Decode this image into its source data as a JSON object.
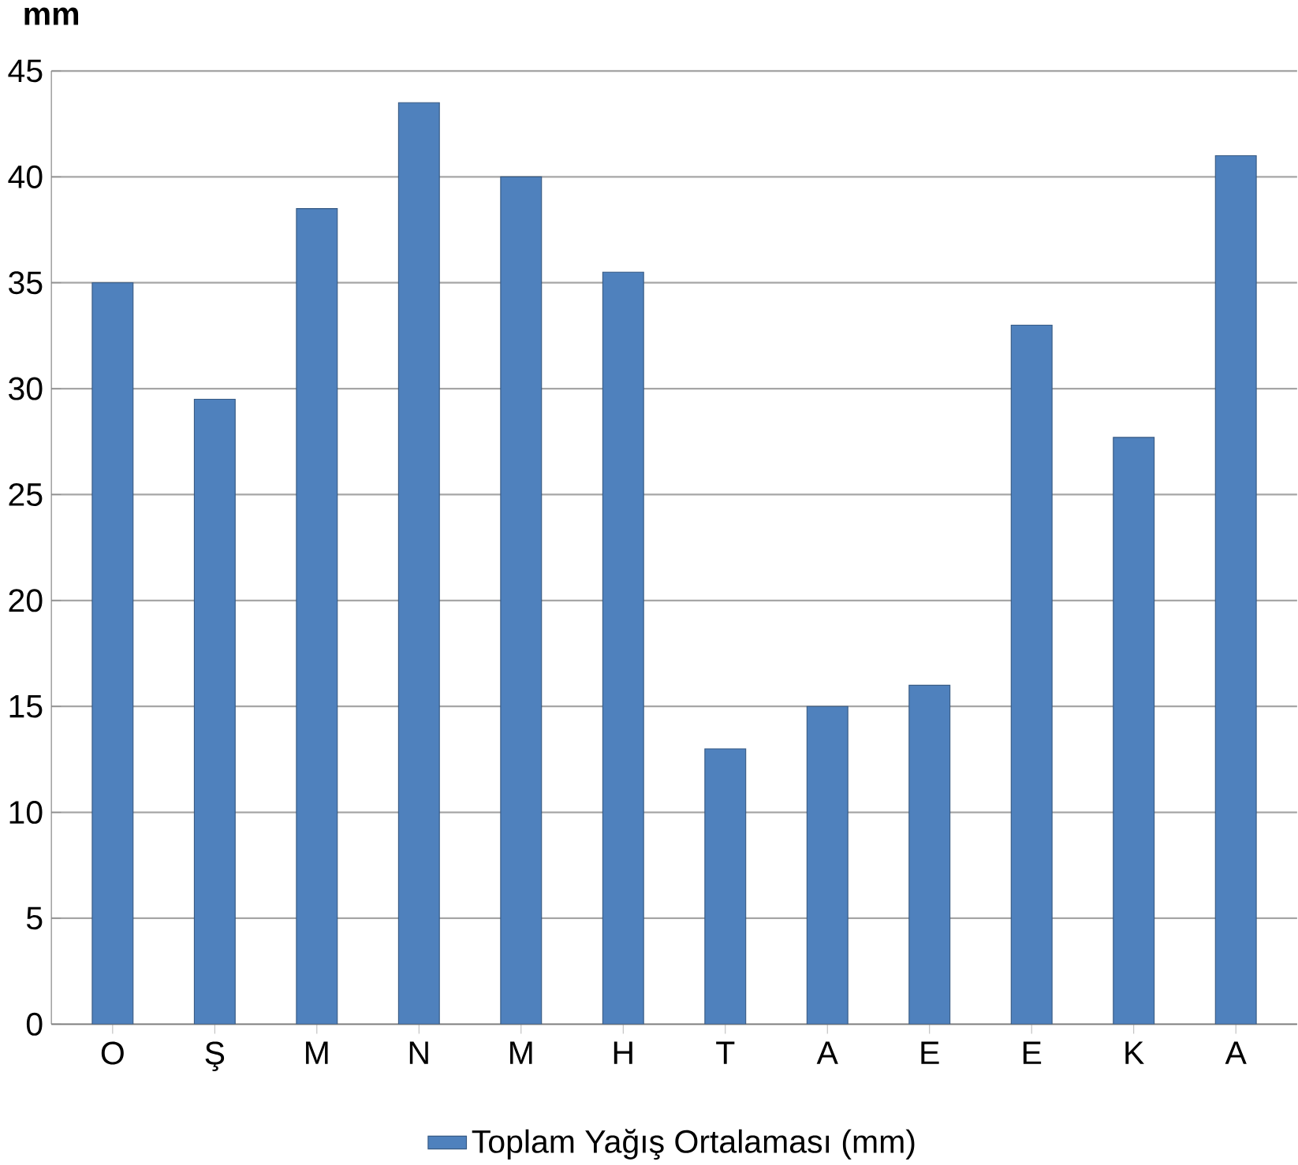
{
  "chart_data": {
    "type": "bar",
    "ylabel": "mm",
    "categories": [
      "O",
      "Ş",
      "M",
      "N",
      "M",
      "H",
      "T",
      "A",
      "E",
      "E",
      "K",
      "A"
    ],
    "series": [
      {
        "name": "Toplam Yağış Ortalaması (mm)",
        "color": "#4f81bd",
        "values": [
          35,
          29.5,
          38.5,
          43.5,
          40,
          35.5,
          13,
          15,
          16,
          33,
          27.7,
          41
        ]
      }
    ],
    "ylim": [
      0,
      45
    ],
    "yticks": [
      0,
      5,
      10,
      15,
      20,
      25,
      30,
      35,
      40,
      45
    ],
    "grid": "y",
    "legend": "bottom"
  }
}
